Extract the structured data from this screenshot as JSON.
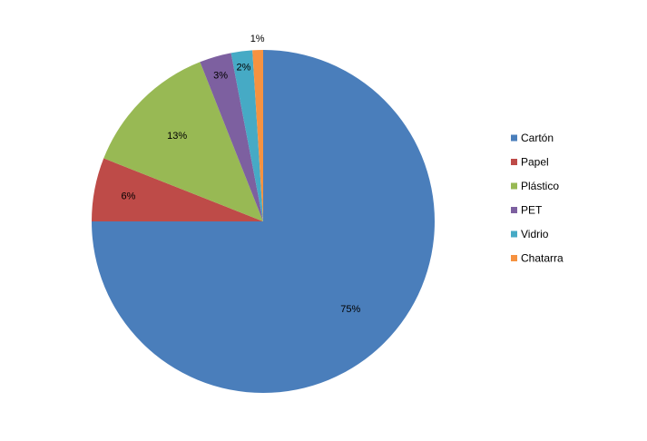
{
  "chart_data": {
    "type": "pie",
    "title": "",
    "legend_position": "right",
    "slices": [
      {
        "name": "Cartón",
        "value": 75,
        "label": "75%",
        "color": "#4A7EBB"
      },
      {
        "name": "Papel",
        "value": 6,
        "label": "6%",
        "color": "#BE4B48"
      },
      {
        "name": "Plástico",
        "value": 13,
        "label": "13%",
        "color": "#98B954"
      },
      {
        "name": "PET",
        "value": 3,
        "label": "3%",
        "color": "#7D60A0"
      },
      {
        "name": "Vidrio",
        "value": 2,
        "label": "2%",
        "color": "#46AAC5"
      },
      {
        "name": "Chatarra",
        "value": 1,
        "label": "1%",
        "color": "#F69240"
      }
    ]
  }
}
